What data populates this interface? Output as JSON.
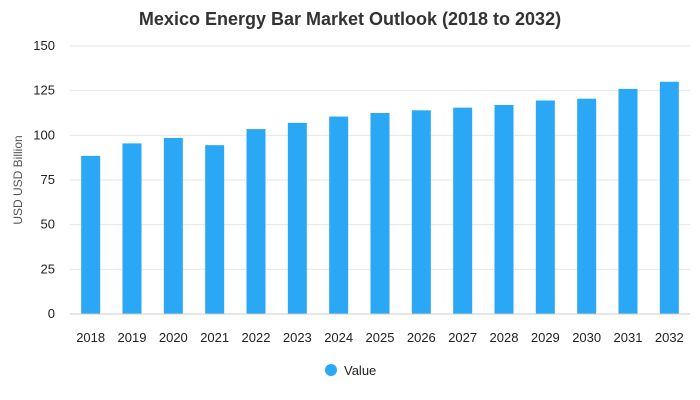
{
  "chart_data": {
    "type": "bar",
    "title": "Mexico Energy Bar Market Outlook (2018 to 2032)",
    "xlabel": "",
    "ylabel": "USD USD Billion",
    "categories": [
      "2018",
      "2019",
      "2020",
      "2021",
      "2022",
      "2023",
      "2024",
      "2025",
      "2026",
      "2027",
      "2028",
      "2029",
      "2030",
      "2031",
      "2032"
    ],
    "series": [
      {
        "name": "Value",
        "color": "#2aa8f5",
        "values": [
          88.5,
          95.5,
          98.5,
          94.5,
          103.5,
          107,
          110.5,
          112.5,
          114,
          115.5,
          117,
          119.5,
          120.5,
          126,
          130
        ]
      }
    ],
    "yticks": [
      "0",
      "25",
      "50",
      "75",
      "100",
      "125",
      "150"
    ],
    "ylim": [
      0,
      150
    ],
    "grid": true,
    "legend_position": "bottom"
  }
}
